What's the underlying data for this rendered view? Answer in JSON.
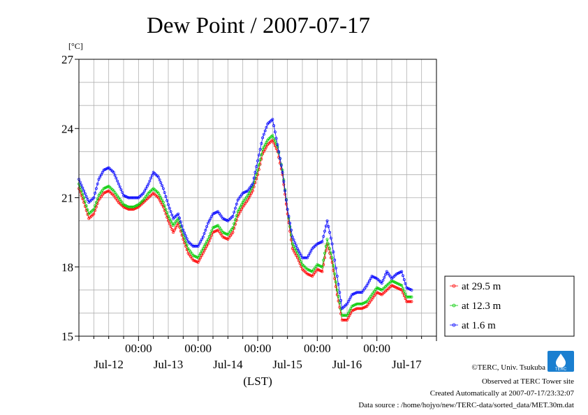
{
  "chart_data": {
    "type": "line",
    "title": "Dew Point / 2007-07-17",
    "ylabel": "[°C]",
    "xlabel": "(LST)",
    "ylim": [
      15,
      27
    ],
    "yticks": [
      15,
      18,
      21,
      24,
      27
    ],
    "xlim_hours": [
      0,
      144
    ],
    "x_tick_time_label": "00:00",
    "x_date_labels": [
      "Jul-12",
      "Jul-13",
      "Jul-14",
      "Jul-15",
      "Jul-16",
      "Jul-17"
    ],
    "grid": true,
    "legend_position": "right",
    "series": [
      {
        "name": "at 29.5 m",
        "color": "#ff0000",
        "keyframes": [
          [
            0,
            21.4
          ],
          [
            2,
            20.8
          ],
          [
            4,
            20.1
          ],
          [
            6,
            20.3
          ],
          [
            8,
            20.9
          ],
          [
            10,
            21.2
          ],
          [
            12,
            21.3
          ],
          [
            14,
            21.1
          ],
          [
            16,
            20.8
          ],
          [
            18,
            20.6
          ],
          [
            20,
            20.5
          ],
          [
            22,
            20.5
          ],
          [
            24,
            20.6
          ],
          [
            26,
            20.8
          ],
          [
            28,
            21.0
          ],
          [
            30,
            21.2
          ],
          [
            32,
            21.0
          ],
          [
            34,
            20.6
          ],
          [
            36,
            20.0
          ],
          [
            38,
            19.5
          ],
          [
            40,
            19.9
          ],
          [
            42,
            19.2
          ],
          [
            44,
            18.6
          ],
          [
            46,
            18.3
          ],
          [
            48,
            18.2
          ],
          [
            50,
            18.6
          ],
          [
            52,
            19.0
          ],
          [
            54,
            19.5
          ],
          [
            56,
            19.6
          ],
          [
            58,
            19.3
          ],
          [
            60,
            19.2
          ],
          [
            62,
            19.5
          ],
          [
            64,
            20.2
          ],
          [
            66,
            20.6
          ],
          [
            68,
            20.9
          ],
          [
            70,
            21.3
          ],
          [
            72,
            22.0
          ],
          [
            74,
            22.9
          ],
          [
            76,
            23.3
          ],
          [
            78,
            23.5
          ],
          [
            80,
            23.0
          ],
          [
            82,
            22.0
          ],
          [
            84,
            20.3
          ],
          [
            86,
            18.8
          ],
          [
            88,
            18.4
          ],
          [
            90,
            17.9
          ],
          [
            92,
            17.7
          ],
          [
            94,
            17.6
          ],
          [
            96,
            17.9
          ],
          [
            98,
            17.8
          ],
          [
            100,
            19.0
          ],
          [
            102,
            18.2
          ],
          [
            104,
            16.8
          ],
          [
            106,
            15.7
          ],
          [
            108,
            15.7
          ],
          [
            110,
            16.1
          ],
          [
            112,
            16.2
          ],
          [
            114,
            16.2
          ],
          [
            116,
            16.3
          ],
          [
            118,
            16.6
          ],
          [
            120,
            16.9
          ],
          [
            122,
            16.8
          ],
          [
            124,
            17.0
          ],
          [
            126,
            17.2
          ],
          [
            128,
            17.1
          ],
          [
            130,
            17.0
          ],
          [
            132,
            16.5
          ],
          [
            134,
            16.5
          ]
        ]
      },
      {
        "name": "at 12.3 m",
        "color": "#00cc00",
        "keyframes": [
          [
            0,
            21.6
          ],
          [
            2,
            21.0
          ],
          [
            4,
            20.3
          ],
          [
            6,
            20.5
          ],
          [
            8,
            21.1
          ],
          [
            10,
            21.4
          ],
          [
            12,
            21.5
          ],
          [
            14,
            21.3
          ],
          [
            16,
            21.0
          ],
          [
            18,
            20.7
          ],
          [
            20,
            20.6
          ],
          [
            22,
            20.6
          ],
          [
            24,
            20.7
          ],
          [
            26,
            20.9
          ],
          [
            28,
            21.2
          ],
          [
            30,
            21.4
          ],
          [
            32,
            21.2
          ],
          [
            34,
            20.8
          ],
          [
            36,
            20.2
          ],
          [
            38,
            19.8
          ],
          [
            40,
            20.1
          ],
          [
            42,
            19.4
          ],
          [
            44,
            18.8
          ],
          [
            46,
            18.5
          ],
          [
            48,
            18.4
          ],
          [
            50,
            18.8
          ],
          [
            52,
            19.2
          ],
          [
            54,
            19.7
          ],
          [
            56,
            19.8
          ],
          [
            58,
            19.5
          ],
          [
            60,
            19.4
          ],
          [
            62,
            19.7
          ],
          [
            64,
            20.4
          ],
          [
            66,
            20.8
          ],
          [
            68,
            21.1
          ],
          [
            70,
            21.5
          ],
          [
            72,
            22.2
          ],
          [
            74,
            23.1
          ],
          [
            76,
            23.5
          ],
          [
            78,
            23.7
          ],
          [
            80,
            23.2
          ],
          [
            82,
            22.2
          ],
          [
            84,
            20.5
          ],
          [
            86,
            19.0
          ],
          [
            88,
            18.6
          ],
          [
            90,
            18.1
          ],
          [
            92,
            17.9
          ],
          [
            94,
            17.8
          ],
          [
            96,
            18.1
          ],
          [
            98,
            18.0
          ],
          [
            100,
            19.2
          ],
          [
            102,
            18.4
          ],
          [
            104,
            17.0
          ],
          [
            106,
            15.9
          ],
          [
            108,
            15.9
          ],
          [
            110,
            16.3
          ],
          [
            112,
            16.4
          ],
          [
            114,
            16.4
          ],
          [
            116,
            16.5
          ],
          [
            118,
            16.8
          ],
          [
            120,
            17.1
          ],
          [
            122,
            17.0
          ],
          [
            124,
            17.2
          ],
          [
            126,
            17.4
          ],
          [
            128,
            17.3
          ],
          [
            130,
            17.2
          ],
          [
            132,
            16.7
          ],
          [
            134,
            16.7
          ]
        ]
      },
      {
        "name": "at 1.6 m",
        "color": "#0000ff",
        "keyframes": [
          [
            0,
            21.8
          ],
          [
            2,
            21.3
          ],
          [
            4,
            20.8
          ],
          [
            6,
            21.0
          ],
          [
            8,
            21.8
          ],
          [
            10,
            22.2
          ],
          [
            12,
            22.3
          ],
          [
            14,
            22.1
          ],
          [
            16,
            21.6
          ],
          [
            18,
            21.1
          ],
          [
            20,
            21.0
          ],
          [
            22,
            21.0
          ],
          [
            24,
            21.0
          ],
          [
            26,
            21.2
          ],
          [
            28,
            21.6
          ],
          [
            30,
            22.1
          ],
          [
            32,
            21.9
          ],
          [
            34,
            21.4
          ],
          [
            36,
            20.7
          ],
          [
            38,
            20.1
          ],
          [
            40,
            20.3
          ],
          [
            42,
            19.6
          ],
          [
            44,
            19.1
          ],
          [
            46,
            18.9
          ],
          [
            48,
            18.9
          ],
          [
            50,
            19.3
          ],
          [
            52,
            19.9
          ],
          [
            54,
            20.3
          ],
          [
            56,
            20.4
          ],
          [
            58,
            20.1
          ],
          [
            60,
            20.0
          ],
          [
            62,
            20.2
          ],
          [
            64,
            20.9
          ],
          [
            66,
            21.2
          ],
          [
            68,
            21.3
          ],
          [
            70,
            21.6
          ],
          [
            72,
            22.6
          ],
          [
            74,
            23.6
          ],
          [
            76,
            24.2
          ],
          [
            78,
            24.4
          ],
          [
            80,
            23.3
          ],
          [
            82,
            22.1
          ],
          [
            84,
            20.5
          ],
          [
            86,
            19.3
          ],
          [
            88,
            18.8
          ],
          [
            90,
            18.4
          ],
          [
            92,
            18.4
          ],
          [
            94,
            18.8
          ],
          [
            96,
            19.0
          ],
          [
            98,
            19.1
          ],
          [
            100,
            20.0
          ],
          [
            102,
            19.0
          ],
          [
            104,
            17.6
          ],
          [
            106,
            16.2
          ],
          [
            108,
            16.4
          ],
          [
            110,
            16.8
          ],
          [
            112,
            16.9
          ],
          [
            114,
            16.9
          ],
          [
            116,
            17.2
          ],
          [
            118,
            17.6
          ],
          [
            120,
            17.5
          ],
          [
            122,
            17.3
          ],
          [
            124,
            17.8
          ],
          [
            126,
            17.5
          ],
          [
            128,
            17.7
          ],
          [
            130,
            17.8
          ],
          [
            132,
            17.1
          ],
          [
            134,
            17.0
          ]
        ]
      }
    ]
  },
  "footer": {
    "copyright": "©TERC, Univ. Tsukuba",
    "observed": "Observed at TERC Tower site",
    "created": "Created Automatically at 2007-07-17/23:32:07",
    "source": "Data source : /home/hojyo/new/TERC-data/sorted_data/MET.30m.dat"
  },
  "logo": {
    "text": "TERC",
    "color": "#1a7fd0"
  }
}
